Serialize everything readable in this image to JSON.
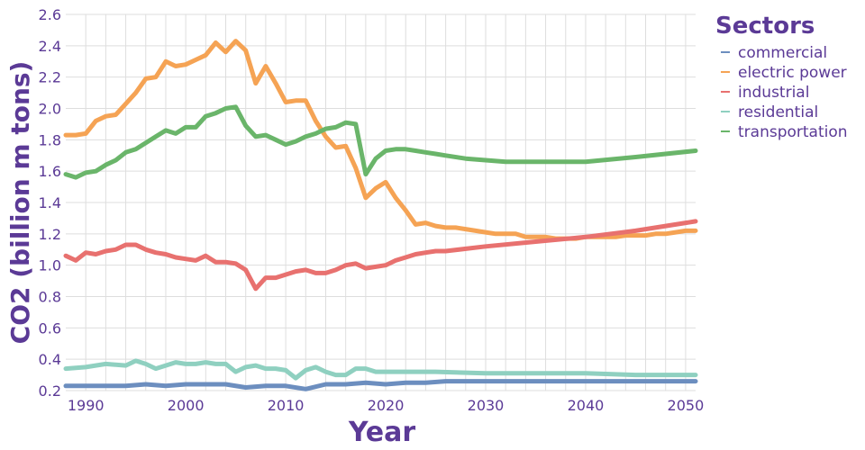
{
  "chart_data": {
    "type": "line",
    "xlabel": "Year",
    "ylabel": "CO2 (billion m tons)",
    "xlim": [
      1988,
      2051
    ],
    "ylim": [
      0.2,
      2.6
    ],
    "x_ticks": [
      1990,
      2000,
      2010,
      2020,
      2030,
      2040,
      2050
    ],
    "y_ticks": [
      0.2,
      0.4,
      0.6,
      0.8,
      1.0,
      1.2,
      1.4,
      1.6,
      1.8,
      2.0,
      2.2,
      2.4,
      2.6
    ],
    "y_tick_labels": [
      "0.2",
      "0.4",
      "0.6",
      "0.8",
      "1.0",
      "1.2",
      "1.4",
      "1.6",
      "1.8",
      "2.0",
      "2.2",
      "2.4",
      "2.6"
    ],
    "grid": true,
    "legend": {
      "title": "Sectors",
      "placement": "right"
    },
    "series": [
      {
        "name": "commercial",
        "color": "#6c8ebf",
        "x": [
          1988,
          1990,
          1992,
          1994,
          1996,
          1998,
          2000,
          2002,
          2004,
          2006,
          2008,
          2010,
          2012,
          2014,
          2016,
          2018,
          2020,
          2022,
          2024,
          2026,
          2030,
          2035,
          2040,
          2045,
          2051
        ],
        "y": [
          0.23,
          0.23,
          0.23,
          0.23,
          0.24,
          0.23,
          0.24,
          0.24,
          0.24,
          0.22,
          0.23,
          0.23,
          0.21,
          0.24,
          0.24,
          0.25,
          0.24,
          0.25,
          0.25,
          0.26,
          0.26,
          0.26,
          0.26,
          0.26,
          0.26
        ]
      },
      {
        "name": "electric power",
        "color": "#f5a354",
        "x": [
          1988,
          1989,
          1990,
          1991,
          1992,
          1993,
          1994,
          1995,
          1996,
          1997,
          1998,
          1999,
          2000,
          2001,
          2002,
          2003,
          2004,
          2005,
          2006,
          2007,
          2008,
          2009,
          2010,
          2011,
          2012,
          2013,
          2014,
          2015,
          2016,
          2017,
          2018,
          2019,
          2020,
          2021,
          2022,
          2023,
          2024,
          2025,
          2026,
          2027,
          2028,
          2029,
          2030,
          2031,
          2032,
          2033,
          2034,
          2035,
          2036,
          2037,
          2038,
          2039,
          2040,
          2041,
          2042,
          2043,
          2044,
          2045,
          2046,
          2047,
          2048,
          2049,
          2050,
          2051
        ],
        "y": [
          1.83,
          1.83,
          1.84,
          1.92,
          1.95,
          1.96,
          2.03,
          2.1,
          2.19,
          2.2,
          2.3,
          2.27,
          2.28,
          2.31,
          2.34,
          2.42,
          2.36,
          2.43,
          2.37,
          2.16,
          2.27,
          2.16,
          2.04,
          2.05,
          2.05,
          1.92,
          1.82,
          1.75,
          1.76,
          1.62,
          1.43,
          1.49,
          1.53,
          1.43,
          1.35,
          1.26,
          1.27,
          1.25,
          1.24,
          1.24,
          1.23,
          1.22,
          1.21,
          1.2,
          1.2,
          1.2,
          1.18,
          1.18,
          1.18,
          1.17,
          1.17,
          1.17,
          1.18,
          1.18,
          1.18,
          1.18,
          1.19,
          1.19,
          1.19,
          1.2,
          1.2,
          1.21,
          1.22,
          1.22
        ]
      },
      {
        "name": "industrial",
        "color": "#e8716f",
        "x": [
          1988,
          1989,
          1990,
          1991,
          1992,
          1993,
          1994,
          1995,
          1996,
          1997,
          1998,
          1999,
          2000,
          2001,
          2002,
          2003,
          2004,
          2005,
          2006,
          2007,
          2008,
          2009,
          2010,
          2011,
          2012,
          2013,
          2014,
          2015,
          2016,
          2017,
          2018,
          2019,
          2020,
          2021,
          2022,
          2023,
          2024,
          2025,
          2026,
          2030,
          2035,
          2040,
          2045,
          2051
        ],
        "y": [
          1.06,
          1.03,
          1.08,
          1.07,
          1.09,
          1.1,
          1.13,
          1.13,
          1.1,
          1.08,
          1.07,
          1.05,
          1.04,
          1.03,
          1.06,
          1.02,
          1.02,
          1.01,
          0.97,
          0.85,
          0.92,
          0.92,
          0.94,
          0.96,
          0.97,
          0.95,
          0.95,
          0.97,
          1.0,
          1.01,
          0.98,
          0.99,
          1.0,
          1.03,
          1.05,
          1.07,
          1.08,
          1.09,
          1.09,
          1.12,
          1.15,
          1.18,
          1.22,
          1.28
        ]
      },
      {
        "name": "residential",
        "color": "#8fd0c0",
        "x": [
          1988,
          1990,
          1992,
          1994,
          1995,
          1996,
          1997,
          1998,
          1999,
          2000,
          2001,
          2002,
          2003,
          2004,
          2005,
          2006,
          2007,
          2008,
          2009,
          2010,
          2011,
          2012,
          2013,
          2014,
          2015,
          2016,
          2017,
          2018,
          2019,
          2020,
          2021,
          2022,
          2025,
          2030,
          2035,
          2040,
          2045,
          2051
        ],
        "y": [
          0.34,
          0.35,
          0.37,
          0.36,
          0.39,
          0.37,
          0.34,
          0.36,
          0.38,
          0.37,
          0.37,
          0.38,
          0.37,
          0.37,
          0.32,
          0.35,
          0.36,
          0.34,
          0.34,
          0.33,
          0.28,
          0.33,
          0.35,
          0.32,
          0.3,
          0.3,
          0.34,
          0.34,
          0.32,
          0.32,
          0.32,
          0.32,
          0.32,
          0.31,
          0.31,
          0.31,
          0.3,
          0.3
        ]
      },
      {
        "name": "transportation",
        "color": "#6ab56a",
        "x": [
          1988,
          1989,
          1990,
          1991,
          1992,
          1993,
          1994,
          1995,
          1996,
          1997,
          1998,
          1999,
          2000,
          2001,
          2002,
          2003,
          2004,
          2005,
          2006,
          2007,
          2008,
          2009,
          2010,
          2011,
          2012,
          2013,
          2014,
          2015,
          2016,
          2017,
          2018,
          2019,
          2020,
          2021,
          2022,
          2023,
          2024,
          2025,
          2026,
          2028,
          2030,
          2032,
          2035,
          2040,
          2045,
          2051
        ],
        "y": [
          1.58,
          1.56,
          1.59,
          1.6,
          1.64,
          1.67,
          1.72,
          1.74,
          1.78,
          1.82,
          1.86,
          1.84,
          1.88,
          1.88,
          1.95,
          1.97,
          2.0,
          2.01,
          1.89,
          1.82,
          1.83,
          1.8,
          1.77,
          1.79,
          1.82,
          1.84,
          1.87,
          1.88,
          1.91,
          1.9,
          1.58,
          1.68,
          1.73,
          1.74,
          1.74,
          1.73,
          1.72,
          1.71,
          1.7,
          1.68,
          1.67,
          1.66,
          1.66,
          1.66,
          1.69,
          1.73
        ]
      }
    ]
  }
}
